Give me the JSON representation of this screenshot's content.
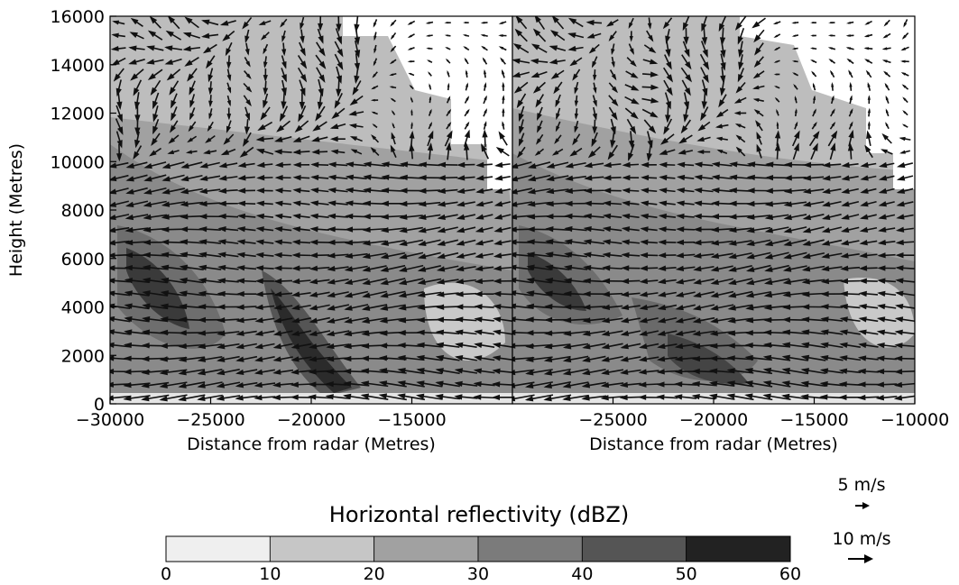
{
  "chart_data": [
    {
      "type": "heatmap",
      "panel": "left",
      "xlabel": "Distance from radar (Metres)",
      "ylabel": "Height (Metres)",
      "xlim": [
        -30000,
        -10000
      ],
      "ylim": [
        0,
        16000
      ],
      "xticks": [
        -30000,
        -25000,
        -20000,
        -15000
      ],
      "xtick_labels": [
        "−30000",
        "−25000",
        "−20000",
        "−15000"
      ],
      "yticks": [
        0,
        2000,
        4000,
        6000,
        8000,
        10000,
        12000,
        14000,
        16000
      ],
      "ytick_labels": [
        "0",
        "2000",
        "4000",
        "6000",
        "8000",
        "10000",
        "12000",
        "14000",
        "16000"
      ],
      "overlay": "wind vectors"
    },
    {
      "type": "heatmap",
      "panel": "right",
      "xlabel": "Distance from radar (Metres)",
      "xlim": [
        -30000,
        -10000
      ],
      "ylim": [
        0,
        16000
      ],
      "xticks": [
        -25000,
        -20000,
        -15000,
        -10000
      ],
      "xtick_labels": [
        "−25000",
        "−20000",
        "−15000",
        "−10000"
      ],
      "overlay": "wind vectors"
    }
  ],
  "colorbar": {
    "title": "Horizontal reflectivity (dBZ)",
    "ticks": [
      "0",
      "10",
      "20",
      "30",
      "40",
      "50",
      "60"
    ],
    "bins": [
      0,
      10,
      20,
      30,
      40,
      50,
      60
    ],
    "colors": [
      "#efefef",
      "#c6c6c6",
      "#a1a1a1",
      "#7b7b7b",
      "#555555",
      "#222222"
    ]
  },
  "vector_key": [
    {
      "label": "5 m/s",
      "speed": 5
    },
    {
      "label": "10 m/s",
      "speed": 10
    }
  ]
}
